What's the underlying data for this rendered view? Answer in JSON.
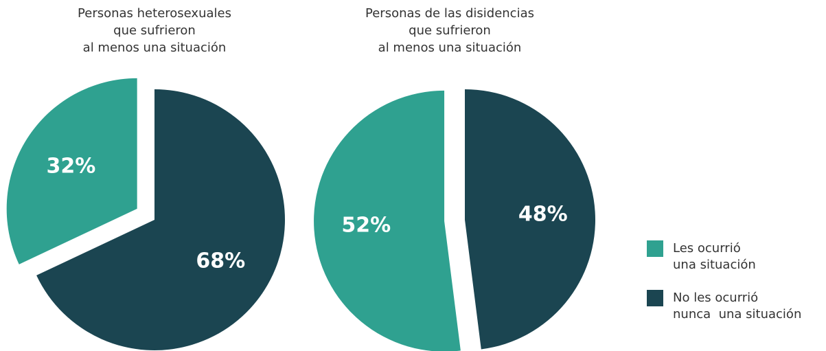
{
  "chart_data": [
    {
      "type": "pie",
      "title": [
        "Personas heterosexuales",
        "que sufrieron",
        "al menos una situación"
      ],
      "values": [
        32,
        68
      ],
      "value_labels": [
        "32%",
        "68%"
      ],
      "colors": [
        "#2fa190",
        "#1b4551"
      ]
    },
    {
      "type": "pie",
      "title": [
        "Personas de las disidencias",
        "que sufrieron",
        "al menos una situación"
      ],
      "values": [
        52,
        48
      ],
      "value_labels": [
        "52%",
        "48%"
      ],
      "colors": [
        "#2fa190",
        "#1b4551"
      ]
    }
  ],
  "legend": {
    "labels": [
      [
        "Les ocurrió",
        "una situación"
      ],
      [
        "No les ocurrió",
        "nunca  una situación"
      ]
    ],
    "colors": [
      "#2fa190",
      "#1b4551"
    ]
  }
}
